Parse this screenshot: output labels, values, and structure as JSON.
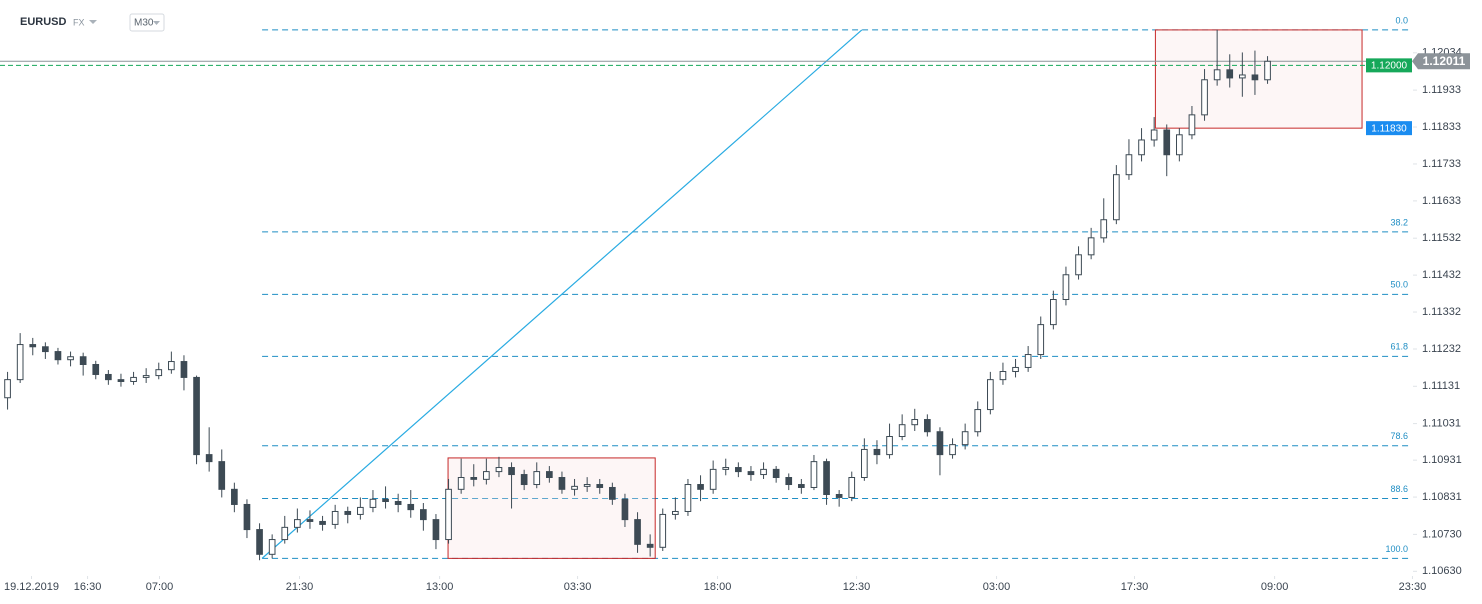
{
  "chart_data": {
    "type": "candlestick",
    "symbol": "EURUSD",
    "market": "FX",
    "timeframe": "M30",
    "open": [
      1.111,
      1.11149,
      1.11244,
      1.11238,
      1.11225,
      1.11203,
      1.11211,
      1.1119,
      1.11163,
      1.11149,
      1.11144,
      1.11155,
      1.1116,
      1.11176,
      1.11198,
      1.11155,
      1.10946,
      1.10927,
      1.10852,
      1.10811,
      1.10743,
      1.10676,
      1.10716,
      1.10749,
      1.1077,
      1.10765,
      1.10757,
      1.10792,
      1.10784,
      1.10803,
      1.10825,
      1.10819,
      1.10811,
      1.10797,
      1.1077,
      1.10716,
      1.10852,
      1.10884,
      1.10879,
      1.109,
      1.10911,
      1.10892,
      1.10865,
      1.109,
      1.10884,
      1.10852,
      1.1086,
      1.10865,
      1.10857,
      1.10825,
      1.1077,
      1.10703,
      1.10695,
      1.10784,
      1.10792,
      1.10865,
      1.10852,
      1.10906,
      1.10911,
      1.109,
      1.10892,
      1.10906,
      1.10884,
      1.10865,
      1.10857,
      1.10927,
      1.10838,
      1.1083,
      1.10884,
      1.1096,
      1.10946,
      1.10995,
      1.11027,
      1.11041,
      1.11008,
      1.10946,
      1.10973,
      1.11008,
      1.11068,
      1.11149,
      1.11171,
      1.11182,
      1.11217,
      1.11298,
      1.11366,
      1.11433,
      1.11487,
      1.11533,
      1.11582,
      1.11704,
      1.11758,
      1.11798,
      1.11825,
      1.11758,
      1.11812,
      1.11866,
      1.11961,
      1.11988,
      1.11966,
      1.11974,
      1.11961
    ],
    "high": [
      1.1117,
      1.11275,
      1.11262,
      1.1125,
      1.11235,
      1.11225,
      1.11222,
      1.112,
      1.11175,
      1.11165,
      1.1117,
      1.1118,
      1.11195,
      1.11225,
      1.11215,
      1.1116,
      1.1102,
      1.1096,
      1.1087,
      1.10825,
      1.1076,
      1.1073,
      1.1078,
      1.108,
      1.10795,
      1.1078,
      1.1081,
      1.10805,
      1.1083,
      1.1085,
      1.1086,
      1.1084,
      1.1085,
      1.10815,
      1.10785,
      1.1088,
      1.10935,
      1.1092,
      1.10935,
      1.1094,
      1.10925,
      1.10905,
      1.10925,
      1.10915,
      1.109,
      1.1088,
      1.10885,
      1.1088,
      1.1087,
      1.1084,
      1.1079,
      1.1073,
      1.108,
      1.1083,
      1.1088,
      1.1089,
      1.1093,
      1.10935,
      1.10925,
      1.10915,
      1.10925,
      1.10915,
      1.10895,
      1.1088,
      1.10945,
      1.10935,
      1.1085,
      1.109,
      1.1099,
      1.10985,
      1.1103,
      1.11055,
      1.1107,
      1.11055,
      1.1102,
      1.1099,
      1.1103,
      1.1109,
      1.1117,
      1.11195,
      1.11205,
      1.1124,
      1.1132,
      1.1139,
      1.11455,
      1.1151,
      1.1156,
      1.1164,
      1.1173,
      1.118,
      1.1183,
      1.1186,
      1.1184,
      1.1183,
      1.1189,
      1.1199,
      1.12096,
      1.1203,
      1.12035,
      1.1204,
      1.12025
    ],
    "low": [
      1.11068,
      1.1114,
      1.11215,
      1.11205,
      1.1119,
      1.11185,
      1.1116,
      1.1115,
      1.11135,
      1.1113,
      1.11135,
      1.1114,
      1.1115,
      1.11165,
      1.1112,
      1.1092,
      1.109,
      1.1083,
      1.1079,
      1.1072,
      1.1066,
      1.10665,
      1.10705,
      1.10735,
      1.10745,
      1.1074,
      1.10745,
      1.1076,
      1.1077,
      1.1079,
      1.108,
      1.1079,
      1.10775,
      1.1074,
      1.1069,
      1.10705,
      1.1084,
      1.1086,
      1.10865,
      1.10885,
      1.108,
      1.1085,
      1.10855,
      1.1087,
      1.1084,
      1.10835,
      1.10845,
      1.1084,
      1.1081,
      1.1075,
      1.1068,
      1.1067,
      1.10685,
      1.1077,
      1.1078,
      1.1082,
      1.1084,
      1.1089,
      1.10885,
      1.10875,
      1.1088,
      1.1087,
      1.1085,
      1.1084,
      1.1085,
      1.1081,
      1.10805,
      1.1082,
      1.10875,
      1.1092,
      1.10935,
      1.10985,
      1.1101,
      1.10995,
      1.1089,
      1.10935,
      1.1096,
      1.10995,
      1.11055,
      1.11135,
      1.11155,
      1.1117,
      1.11205,
      1.11285,
      1.1135,
      1.1142,
      1.11475,
      1.1152,
      1.1157,
      1.1169,
      1.1174,
      1.1178,
      1.117,
      1.1174,
      1.118,
      1.1185,
      1.11945,
      1.1194,
      1.11915,
      1.1192,
      1.1195
    ],
    "close": [
      1.11149,
      1.11244,
      1.11238,
      1.11225,
      1.11203,
      1.11211,
      1.1119,
      1.11163,
      1.11149,
      1.11144,
      1.11155,
      1.1116,
      1.11176,
      1.11198,
      1.11155,
      1.10946,
      1.10927,
      1.10852,
      1.10811,
      1.10743,
      1.10676,
      1.10716,
      1.10749,
      1.1077,
      1.10765,
      1.10757,
      1.10792,
      1.10784,
      1.10803,
      1.10825,
      1.10819,
      1.10811,
      1.10797,
      1.1077,
      1.10716,
      1.10852,
      1.10884,
      1.10879,
      1.109,
      1.10911,
      1.10892,
      1.10865,
      1.109,
      1.10884,
      1.10852,
      1.1086,
      1.10865,
      1.10857,
      1.10825,
      1.1077,
      1.10703,
      1.10695,
      1.10784,
      1.10792,
      1.10865,
      1.10852,
      1.10906,
      1.10911,
      1.109,
      1.10892,
      1.10906,
      1.10884,
      1.10865,
      1.10857,
      1.10927,
      1.10838,
      1.1083,
      1.10884,
      1.1096,
      1.10946,
      1.10995,
      1.11027,
      1.11041,
      1.11008,
      1.10946,
      1.10973,
      1.11008,
      1.11068,
      1.11149,
      1.11171,
      1.11182,
      1.11217,
      1.11298,
      1.11366,
      1.11433,
      1.11487,
      1.11533,
      1.11582,
      1.11704,
      1.11758,
      1.11798,
      1.11825,
      1.11758,
      1.11812,
      1.11866,
      1.11961,
      1.11988,
      1.11966,
      1.11974,
      1.11961,
      1.12011
    ],
    "up_color": "#ffffff",
    "down_color": "#3d4a54",
    "xlim": [
      -0.6,
      112.1
    ],
    "xticks": [
      {
        "value": 1.9,
        "label": "19.12.2019"
      },
      {
        "value": 6.35,
        "label": "16:30"
      },
      {
        "value": 12.06,
        "label": "07:00"
      },
      {
        "value": 23.17,
        "label": "21:30"
      },
      {
        "value": 34.29,
        "label": "13:00"
      },
      {
        "value": 45.24,
        "label": "03:30"
      },
      {
        "value": 56.35,
        "label": "18:00"
      },
      {
        "value": 67.38,
        "label": "12:30"
      },
      {
        "value": 78.49,
        "label": "03:00"
      },
      {
        "value": 89.44,
        "label": "17:30"
      },
      {
        "value": 100.56,
        "label": "09:00"
      },
      {
        "value": 111.5,
        "label": "23:30"
      }
    ],
    "ylim": [
      1.1062,
      1.12177
    ],
    "yticks": [
      1.12034,
      1.11933,
      1.11833,
      1.11733,
      1.11633,
      1.11532,
      1.11432,
      1.11332,
      1.11232,
      1.11131,
      {
        "value": 1.1103,
        "label": "1.11031"
      },
      1.10931,
      1.10831,
      {
        "value": 1.1073,
        "label": "1.10730"
      },
      {
        "value": 1.1063,
        "label": "1.10630"
      }
    ],
    "fib_color": "#1f8ec4",
    "fib_levels": [
      {
        "value": 1.12096,
        "label": "0.0"
      },
      {
        "value": 1.11549,
        "label": "38.2"
      },
      {
        "value": 1.1138,
        "label": "50.0"
      },
      {
        "value": 1.11212,
        "label": "61.8"
      },
      {
        "value": 1.1097,
        "label": "78.6"
      },
      {
        "value": 1.10827,
        "label": "88.6"
      },
      {
        "value": 1.10665,
        "label": "100.0"
      }
    ],
    "trendline": {
      "x": [
        20.2,
        67.8
      ],
      "values": [
        1.10665,
        1.12096
      ],
      "color": "#29abe2"
    },
    "boxes": [
      {
        "x": [
          34.96,
          51.4
        ],
        "values": [
          1.10937,
          1.10665
        ],
        "color": "#c62828"
      },
      {
        "x": [
          91.1,
          107.5
        ],
        "values": [
          1.12096,
          1.1183
        ],
        "color": "#c62828"
      }
    ],
    "current_price": {
      "value": 1.12011,
      "label": "1.12011",
      "color": "#8c9399"
    },
    "price_tags": [
      {
        "value": 1.12,
        "label": "1.12000",
        "color": "#16a85a"
      },
      {
        "value": 1.1183,
        "label": "1.11830",
        "color": "#1a8cf0"
      }
    ]
  }
}
